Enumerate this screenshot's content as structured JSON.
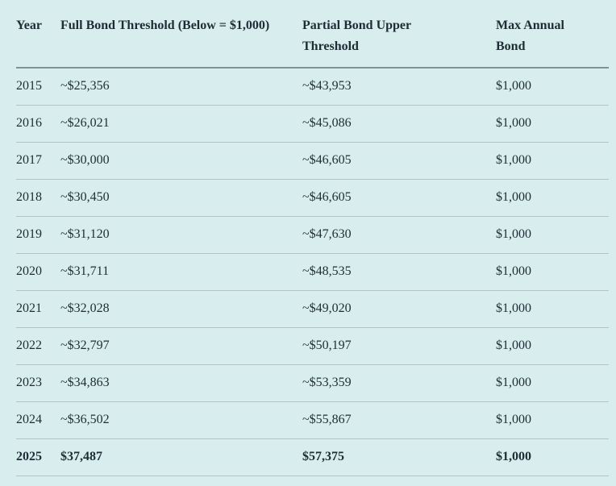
{
  "page": {
    "background_color": "#d8edee",
    "text_color": "#1e2c35",
    "header_divider_color": "#7e929c",
    "row_divider_color": "#b3c4c9"
  },
  "chart_data": {
    "type": "table",
    "columns": [
      "Year",
      "Full Bond Threshold (Below = $1,000)",
      "Partial Bond Upper Threshold",
      "Max Annual Bond"
    ],
    "rows": [
      [
        "2015",
        "~$25,356",
        "~$43,953",
        "$1,000"
      ],
      [
        "2016",
        "~$26,021",
        "~$45,086",
        "$1,000"
      ],
      [
        "2017",
        "~$30,000",
        "~$46,605",
        "$1,000"
      ],
      [
        "2018",
        "~$30,450",
        "~$46,605",
        "$1,000"
      ],
      [
        "2019",
        "~$31,120",
        "~$47,630",
        "$1,000"
      ],
      [
        "2020",
        "~$31,711",
        "~$48,535",
        "$1,000"
      ],
      [
        "2021",
        "~$32,028",
        "~$49,020",
        "$1,000"
      ],
      [
        "2022",
        "~$32,797",
        "~$50,197",
        "$1,000"
      ],
      [
        "2023",
        "~$34,863",
        "~$53,359",
        "$1,000"
      ],
      [
        "2024",
        "~$36,502",
        "~$55,867",
        "$1,000"
      ],
      [
        "2025",
        "$37,487",
        "$57,375",
        "$1,000"
      ]
    ],
    "bold_row_indices": [
      10
    ],
    "layout": {
      "grid": "horizontal row dividers only",
      "header_divider": "thick",
      "alignment": "left"
    }
  }
}
